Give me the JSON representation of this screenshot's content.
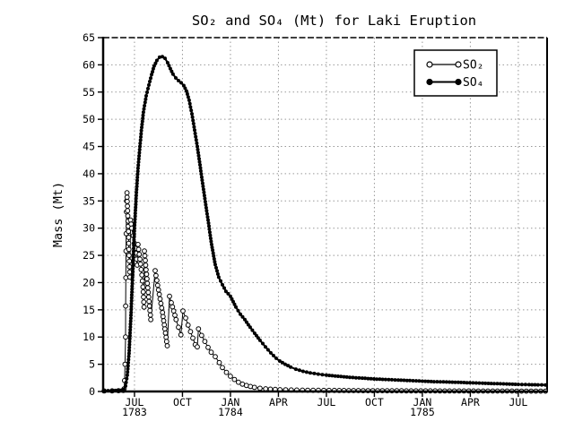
{
  "figure": {
    "background": "#ffffff",
    "title": "SO₂ and SO₄ (Mt) for Laki Eruption",
    "ylabel": "Mass (Mt)"
  },
  "colors": {
    "ink": "#000000",
    "grid": "#999999",
    "plot_bg": "#ffffff"
  },
  "chart_data": {
    "type": "line",
    "title": "SO₂ and SO₄ (Mt) for Laki Eruption",
    "xlabel": "",
    "ylabel": "Mass (Mt)",
    "ylim": [
      0,
      65
    ],
    "ytick_step": 5,
    "yticks": [
      0,
      5,
      10,
      15,
      20,
      25,
      30,
      35,
      40,
      45,
      50,
      55,
      60,
      65
    ],
    "x_unit": "months after 1 Jun 1783",
    "xlim": [
      -0.96,
      26.8
    ],
    "xticks": [
      {
        "m": 1,
        "label": "JUL",
        "year": "1783"
      },
      {
        "m": 4,
        "label": "OCT"
      },
      {
        "m": 7,
        "label": "JAN",
        "year": "1784"
      },
      {
        "m": 10,
        "label": "APR"
      },
      {
        "m": 13,
        "label": "JUL"
      },
      {
        "m": 16,
        "label": "OCT"
      },
      {
        "m": 19,
        "label": "JAN",
        "year": "1785"
      },
      {
        "m": 22,
        "label": "APR"
      },
      {
        "m": 25,
        "label": "JUL"
      }
    ],
    "grid": "dotted",
    "legend": {
      "position": "top-right",
      "entries": [
        {
          "label": "SO₂",
          "marker": "open-circle"
        },
        {
          "label": "SO₄",
          "marker": "filled-circle"
        }
      ]
    },
    "series": [
      {
        "name": "SO₂",
        "marker": "open-circle",
        "points": [
          [
            -0.9,
            0.1
          ],
          [
            -0.4,
            0.12
          ],
          [
            0,
            0.15
          ],
          [
            0.3,
            0.2
          ],
          [
            0.35,
            0.5
          ],
          [
            0.38,
            2
          ],
          [
            0.41,
            5
          ],
          [
            0.44,
            10
          ],
          [
            0.45,
            15.7
          ],
          [
            0.46,
            20.9
          ],
          [
            0.47,
            25.8
          ],
          [
            0.48,
            29
          ],
          [
            0.5,
            33
          ],
          [
            0.51,
            35
          ],
          [
            0.53,
            36.5
          ],
          [
            0.55,
            34.9
          ],
          [
            0.57,
            33.2
          ],
          [
            0.6,
            31.3
          ],
          [
            0.62,
            29.4
          ],
          [
            0.64,
            27.2
          ],
          [
            0.66,
            25
          ],
          [
            0.69,
            22.9
          ],
          [
            0.71,
            21
          ],
          [
            0.75,
            31.5
          ],
          [
            0.83,
            30
          ],
          [
            0.92,
            28.6
          ],
          [
            1.0,
            27.2
          ],
          [
            1.08,
            25.4
          ],
          [
            1.17,
            23.2
          ],
          [
            1.22,
            27
          ],
          [
            1.3,
            25.2
          ],
          [
            1.38,
            23.4
          ],
          [
            1.46,
            21.4
          ],
          [
            1.53,
            19.2
          ],
          [
            1.6,
            15.5
          ],
          [
            1.62,
            25.8
          ],
          [
            1.7,
            23.2
          ],
          [
            1.78,
            20.7
          ],
          [
            1.86,
            18.2
          ],
          [
            1.94,
            15.7
          ],
          [
            2.02,
            13.2
          ],
          [
            2.29,
            22.2
          ],
          [
            2.45,
            19.5
          ],
          [
            2.6,
            17
          ],
          [
            2.75,
            14.5
          ],
          [
            2.9,
            11.5
          ],
          [
            3.05,
            8.4
          ],
          [
            3.19,
            17.5
          ],
          [
            3.3,
            16.3
          ],
          [
            3.45,
            14.8
          ],
          [
            3.6,
            13.2
          ],
          [
            3.75,
            11.8
          ],
          [
            3.9,
            10.4
          ],
          [
            4.03,
            14.8
          ],
          [
            4.2,
            13.5
          ],
          [
            4.35,
            12.2
          ],
          [
            4.5,
            11
          ],
          [
            4.65,
            9.8
          ],
          [
            4.8,
            8.6
          ],
          [
            4.93,
            8.2
          ],
          [
            5.0,
            11.5
          ],
          [
            5.2,
            10.3
          ],
          [
            5.4,
            9.2
          ],
          [
            5.6,
            8.1
          ],
          [
            5.8,
            7.2
          ],
          [
            6.05,
            6.4
          ],
          [
            6.3,
            5.3
          ],
          [
            6.5,
            4.4
          ],
          [
            6.75,
            3.5
          ],
          [
            7.0,
            2.8
          ],
          [
            7.25,
            2.2
          ],
          [
            7.5,
            1.7
          ],
          [
            7.75,
            1.35
          ],
          [
            8.0,
            1.1
          ],
          [
            8.25,
            0.92
          ],
          [
            8.5,
            0.75
          ],
          [
            8.85,
            0.6
          ],
          [
            9.2,
            0.5
          ],
          [
            9.5,
            0.42
          ],
          [
            10.1,
            0.33
          ],
          [
            10.8,
            0.28
          ],
          [
            11.5,
            0.24
          ],
          [
            12.5,
            0.21
          ],
          [
            13.5,
            0.19
          ],
          [
            15,
            0.16
          ],
          [
            16.5,
            0.14
          ],
          [
            18,
            0.12
          ],
          [
            19.5,
            0.11
          ],
          [
            21,
            0.1
          ],
          [
            22.5,
            0.09
          ],
          [
            24,
            0.08
          ],
          [
            25.5,
            0.07
          ],
          [
            26.7,
            0.06
          ]
        ]
      },
      {
        "name": "SO₄",
        "marker": "filled-circle",
        "points": [
          [
            -0.9,
            0.15
          ],
          [
            -0.4,
            0.15
          ],
          [
            0,
            0.2
          ],
          [
            0.2,
            0.25
          ],
          [
            0.33,
            0.4
          ],
          [
            0.44,
            1
          ],
          [
            0.55,
            3
          ],
          [
            0.66,
            7
          ],
          [
            0.78,
            14
          ],
          [
            0.89,
            22
          ],
          [
            1.0,
            30
          ],
          [
            1.11,
            36
          ],
          [
            1.22,
            41
          ],
          [
            1.34,
            45
          ],
          [
            1.45,
            48.5
          ],
          [
            1.56,
            51.3
          ],
          [
            1.73,
            54.3
          ],
          [
            1.9,
            56.3
          ],
          [
            2.07,
            58.2
          ],
          [
            2.23,
            59.8
          ],
          [
            2.4,
            60.8
          ],
          [
            2.57,
            61.4
          ],
          [
            2.74,
            61.5
          ],
          [
            2.91,
            61.2
          ],
          [
            3.07,
            60.4
          ],
          [
            3.24,
            59.3
          ],
          [
            3.41,
            58.3
          ],
          [
            3.58,
            57.6
          ],
          [
            3.75,
            57.1
          ],
          [
            3.92,
            56.7
          ],
          [
            4.08,
            56.2
          ],
          [
            4.25,
            55.2
          ],
          [
            4.42,
            53.5
          ],
          [
            4.59,
            51
          ],
          [
            4.76,
            48
          ],
          [
            4.93,
            45
          ],
          [
            5.15,
            40.5
          ],
          [
            5.37,
            36
          ],
          [
            5.6,
            31.5
          ],
          [
            5.82,
            27
          ],
          [
            6.05,
            23.3
          ],
          [
            6.27,
            21
          ],
          [
            6.5,
            19.6
          ],
          [
            6.72,
            18.4
          ],
          [
            7.0,
            17.5
          ],
          [
            7.34,
            15.5
          ],
          [
            7.62,
            14.2
          ],
          [
            7.9,
            13.2
          ],
          [
            8.23,
            11.8
          ],
          [
            8.51,
            10.7
          ],
          [
            8.85,
            9.4
          ],
          [
            9.19,
            8.2
          ],
          [
            9.52,
            7.1
          ],
          [
            9.86,
            6.1
          ],
          [
            10.08,
            5.6
          ],
          [
            10.42,
            5.0
          ],
          [
            10.76,
            4.5
          ],
          [
            11.09,
            4.1
          ],
          [
            11.54,
            3.7
          ],
          [
            11.99,
            3.4
          ],
          [
            12.49,
            3.2
          ],
          [
            13.0,
            3.0
          ],
          [
            13.73,
            2.8
          ],
          [
            14.46,
            2.6
          ],
          [
            15.24,
            2.45
          ],
          [
            15.97,
            2.3
          ],
          [
            16.7,
            2.2
          ],
          [
            17.49,
            2.1
          ],
          [
            18.22,
            2.0
          ],
          [
            19.0,
            1.9
          ],
          [
            19.73,
            1.8
          ],
          [
            20.51,
            1.75
          ],
          [
            21.24,
            1.68
          ],
          [
            21.97,
            1.6
          ],
          [
            22.76,
            1.52
          ],
          [
            23.49,
            1.45
          ],
          [
            24.27,
            1.38
          ],
          [
            25.0,
            1.3
          ],
          [
            25.67,
            1.25
          ],
          [
            26.23,
            1.22
          ],
          [
            26.7,
            1.2
          ]
        ]
      }
    ]
  }
}
